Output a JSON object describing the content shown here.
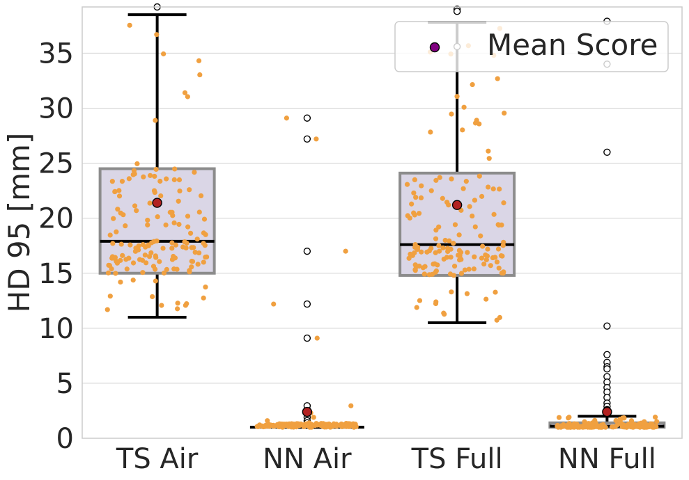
{
  "chart_data": {
    "type": "box",
    "ylabel": "HD 95 [mm]",
    "xlabel": "",
    "ylim": [
      0,
      39.2
    ],
    "yticks": [
      "0",
      "5",
      "10",
      "15",
      "20",
      "25",
      "30",
      "35"
    ],
    "legend": {
      "label": "Mean Score",
      "position": "top-right"
    },
    "categories": [
      "TS Air",
      "NN Air",
      "TS Full",
      "NN Full"
    ],
    "colors": {
      "box_fill": "#dad6e6",
      "box_edge": "#8c8c8c",
      "median": "#000000",
      "whisker": "#000000",
      "whisker_light": "#c8c8c8",
      "strip": "#f0a040",
      "mean_fill": "#b22222",
      "legend_mean_fill": "#800080",
      "grid": "#d0d0d0",
      "frame": "#cccccc"
    },
    "boxes": [
      {
        "name": "TS Air",
        "q1": 15.0,
        "median": 17.9,
        "q3": 24.5,
        "whisker_low": 11.0,
        "whisker_high": 38.5,
        "mean": 21.4,
        "outliers": [
          39.2
        ]
      },
      {
        "name": "NN Air",
        "q1": 1.0,
        "median": 1.0,
        "q3": 1.0,
        "whisker_low": 1.0,
        "whisker_high": 1.0,
        "mean": 2.4,
        "outliers": [
          29.1,
          27.2,
          17.0,
          12.2,
          9.1,
          2.95,
          2.3,
          1.9,
          1.6,
          1.4
        ]
      },
      {
        "name": "TS Full",
        "q1": 14.8,
        "median": 17.6,
        "q3": 24.1,
        "whisker_low": 10.5,
        "whisker_high": 37.8,
        "mean": 21.2,
        "outliers": [
          39.0,
          38.8,
          35.6
        ]
      },
      {
        "name": "NN Full",
        "q1": 1.0,
        "median": 1.1,
        "q3": 1.4,
        "whisker_low": 1.0,
        "whisker_high": 2.0,
        "mean": 2.4,
        "outliers": [
          37.9,
          34.0,
          26.0,
          10.2,
          7.6,
          6.9,
          6.5,
          6.3,
          5.6,
          5.1,
          4.6,
          4.2,
          3.7,
          3.2,
          2.9,
          2.6
        ]
      }
    ]
  }
}
